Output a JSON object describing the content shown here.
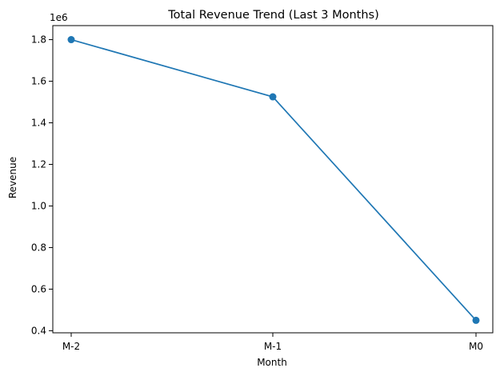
{
  "chart_data": {
    "type": "line",
    "title": "Total Revenue Trend (Last 3 Months)",
    "xlabel": "Month",
    "ylabel": "Revenue",
    "y_offset_label": "1e6",
    "categories": [
      "M-2",
      "M-1",
      "M0"
    ],
    "series": [
      {
        "values": [
          1800000,
          1525000,
          450000
        ],
        "color": "#1f77b4",
        "marker": "circle"
      }
    ],
    "ylim": [
      390000,
      1867500
    ],
    "yticks": [
      400000,
      600000,
      800000,
      1000000,
      1200000,
      1400000,
      1600000,
      1800000
    ],
    "ytick_labels": [
      "0.4",
      "0.6",
      "0.8",
      "1.0",
      "1.2",
      "1.4",
      "1.6",
      "1.8"
    ],
    "grid": false,
    "legend": "none"
  }
}
